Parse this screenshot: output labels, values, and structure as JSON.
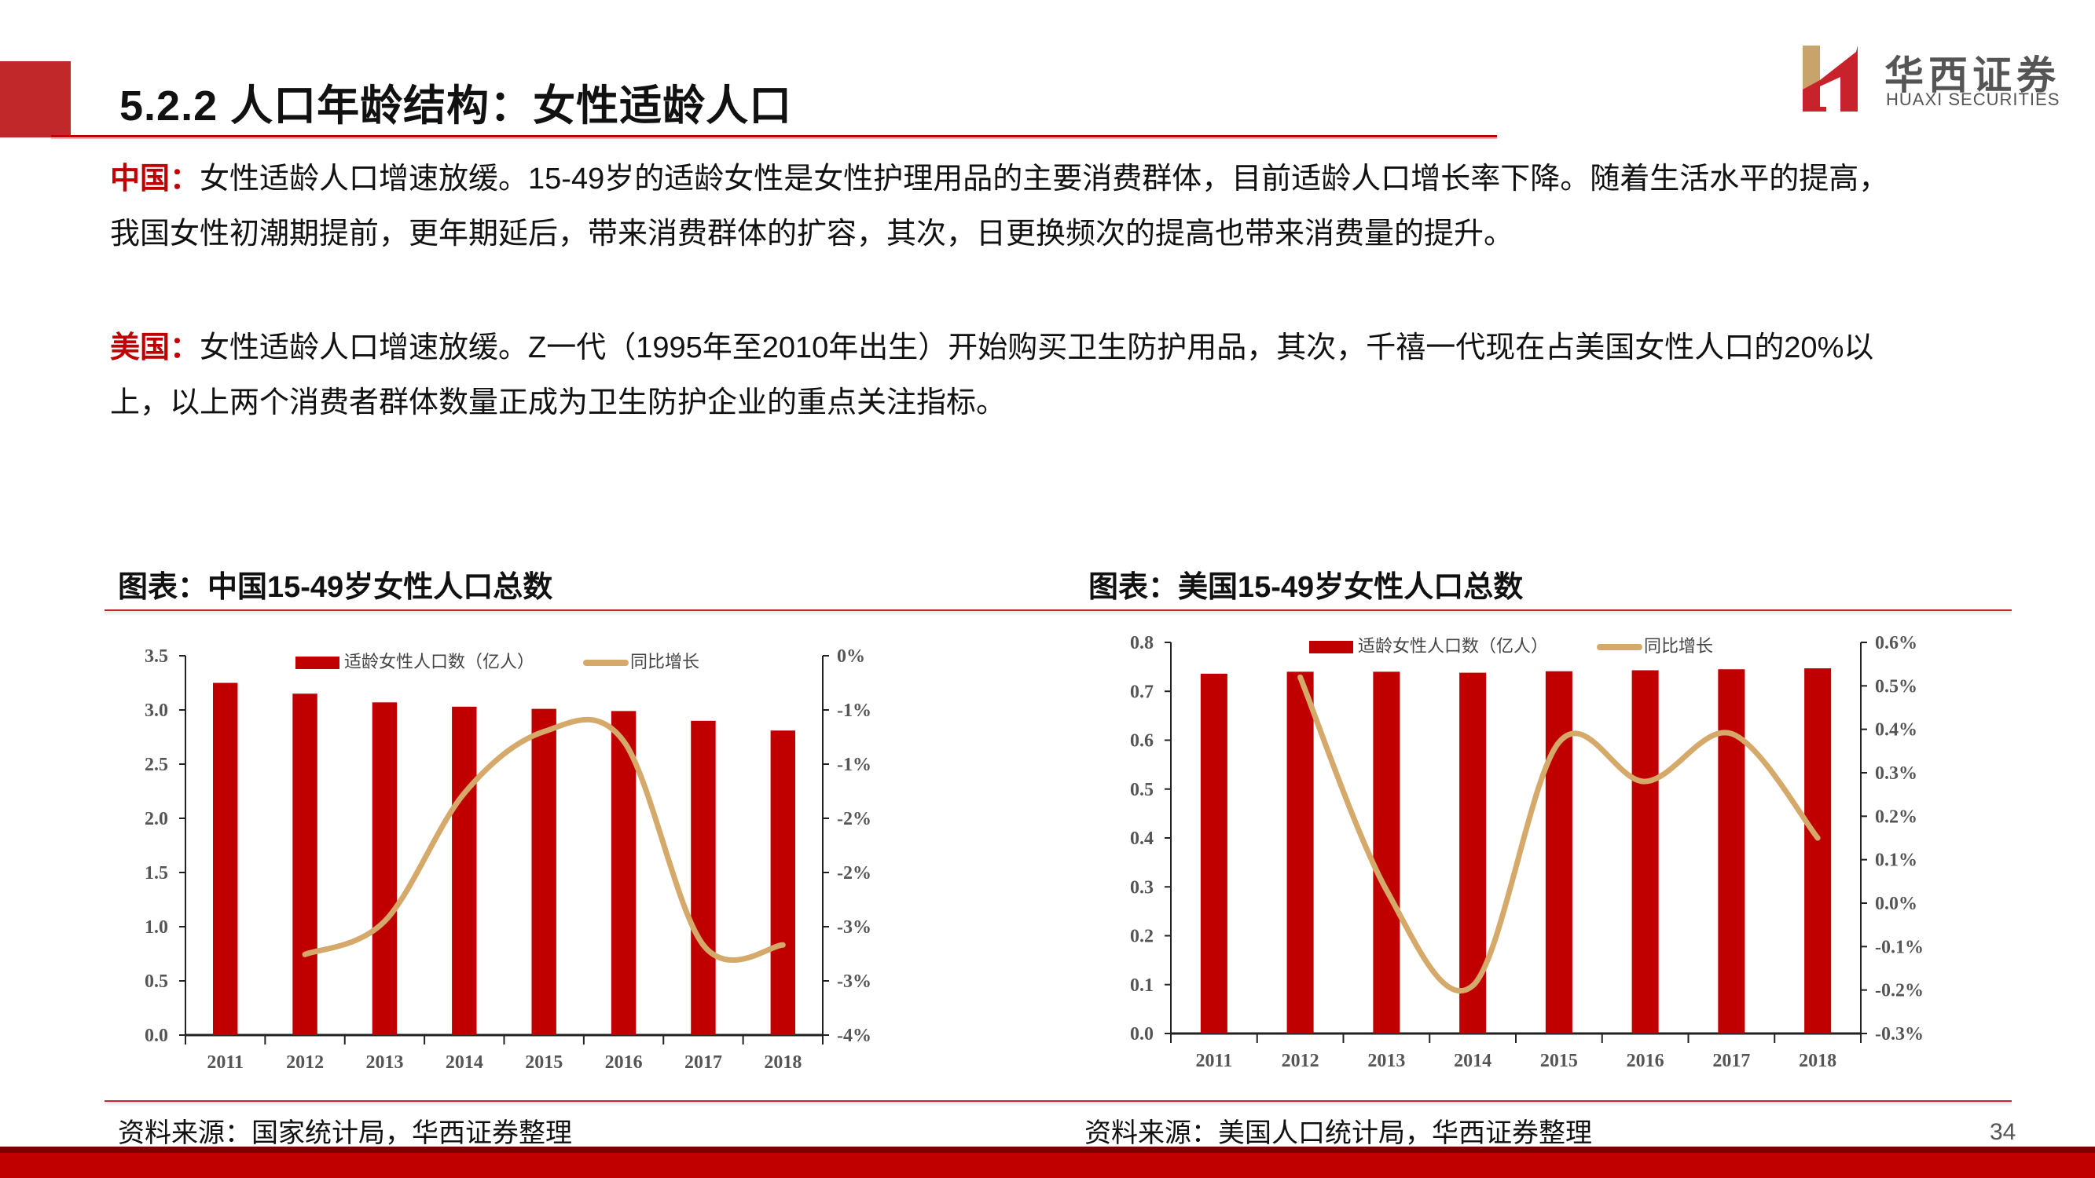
{
  "header": {
    "title": "5.2.2 人口年龄结构：女性适龄人口",
    "logo": {
      "cn": "华西证券",
      "en": "HUAXI SECURITIES",
      "icon": "huaxi-h-logo-icon"
    }
  },
  "body": {
    "china": {
      "lead": "中国：",
      "line1": "女性适龄人口增速放缓。15-49岁的适龄女性是女性护理用品的主要消费群体，目前适龄人口增长率下降。随着生活水平的提高，",
      "line2": "我国女性初潮期提前，更年期延后，带来消费群体的扩容，其次，日更换频次的提高也带来消费量的提升。"
    },
    "usa": {
      "lead": "美国：",
      "line1": "女性适龄人口增速放缓。Z一代（1995年至2010年出生）开始购买卫生防护用品，其次，千禧一代现在占美国女性人口的20%以",
      "line2": "上，以上两个消费者群体数量正成为卫生防护企业的重点关注指标。"
    }
  },
  "charts": {
    "left": {
      "title": "图表：中国15-49岁女性人口总数",
      "source": "资料来源：国家统计局，华西证券整理"
    },
    "right": {
      "title": "图表：美国15-49岁女性人口总数",
      "source": "资料来源：美国人口统计局，华西证券整理"
    }
  },
  "footer": {
    "page_number": "34"
  },
  "colors": {
    "brand_red": "#c00000",
    "line_gold": "#d4a96a",
    "dark_red": "#7a0000"
  },
  "chart_data": [
    {
      "type": "bar",
      "title": "图表：中国15-49岁女性人口总数",
      "categories": [
        "2011",
        "2012",
        "2013",
        "2014",
        "2015",
        "2016",
        "2017",
        "2018"
      ],
      "series": [
        {
          "name": "适龄女性人口数（亿人）",
          "type": "bar",
          "axis": "left",
          "color": "#c00000",
          "values": [
            3.25,
            3.15,
            3.07,
            3.03,
            3.01,
            2.99,
            2.9,
            2.81
          ]
        },
        {
          "name": "同比增长",
          "type": "line",
          "axis": "right",
          "color": "#d4a96a",
          "values": [
            null,
            -3.15,
            -2.8,
            -1.45,
            -0.8,
            -0.9,
            -3.05,
            -3.05
          ]
        }
      ],
      "ylim": [
        0,
        3.5
      ],
      "y_ticks": [
        "0.0",
        "0.5",
        "1.0",
        "1.5",
        "2.0",
        "2.5",
        "3.0",
        "3.5"
      ],
      "y2lim": [
        -4,
        0
      ],
      "y2_ticks": [
        "-4%",
        "-3%",
        "-3%",
        "-2%",
        "-2%",
        "-1%",
        "-1%",
        "0%"
      ],
      "legend": [
        "适龄女性人口数（亿人）",
        "同比增长"
      ],
      "legend_position": "top",
      "grid": false
    },
    {
      "type": "bar",
      "title": "图表：美国15-49岁女性人口总数",
      "categories": [
        "2011",
        "2012",
        "2013",
        "2014",
        "2015",
        "2016",
        "2017",
        "2018"
      ],
      "series": [
        {
          "name": "适龄女性人口数（亿人）",
          "type": "bar",
          "axis": "left",
          "color": "#c00000",
          "values": [
            0.736,
            0.74,
            0.74,
            0.738,
            0.741,
            0.743,
            0.745,
            0.747
          ]
        },
        {
          "name": "同比增长",
          "type": "line",
          "axis": "right",
          "color": "#d4a96a",
          "values": [
            null,
            0.52,
            0.03,
            -0.19,
            0.37,
            0.28,
            0.39,
            0.15
          ]
        }
      ],
      "ylim": [
        0,
        0.8
      ],
      "y_ticks": [
        "0.0",
        "0.1",
        "0.2",
        "0.3",
        "0.4",
        "0.5",
        "0.6",
        "0.7",
        "0.8"
      ],
      "y2lim": [
        -0.3,
        0.6
      ],
      "y2_ticks": [
        "-0.3%",
        "-0.2%",
        "-0.1%",
        "0.0%",
        "0.1%",
        "0.2%",
        "0.3%",
        "0.4%",
        "0.5%",
        "0.6%"
      ],
      "legend": [
        "适龄女性人口数（亿人）",
        "同比增长"
      ],
      "legend_position": "top",
      "grid": false
    }
  ]
}
